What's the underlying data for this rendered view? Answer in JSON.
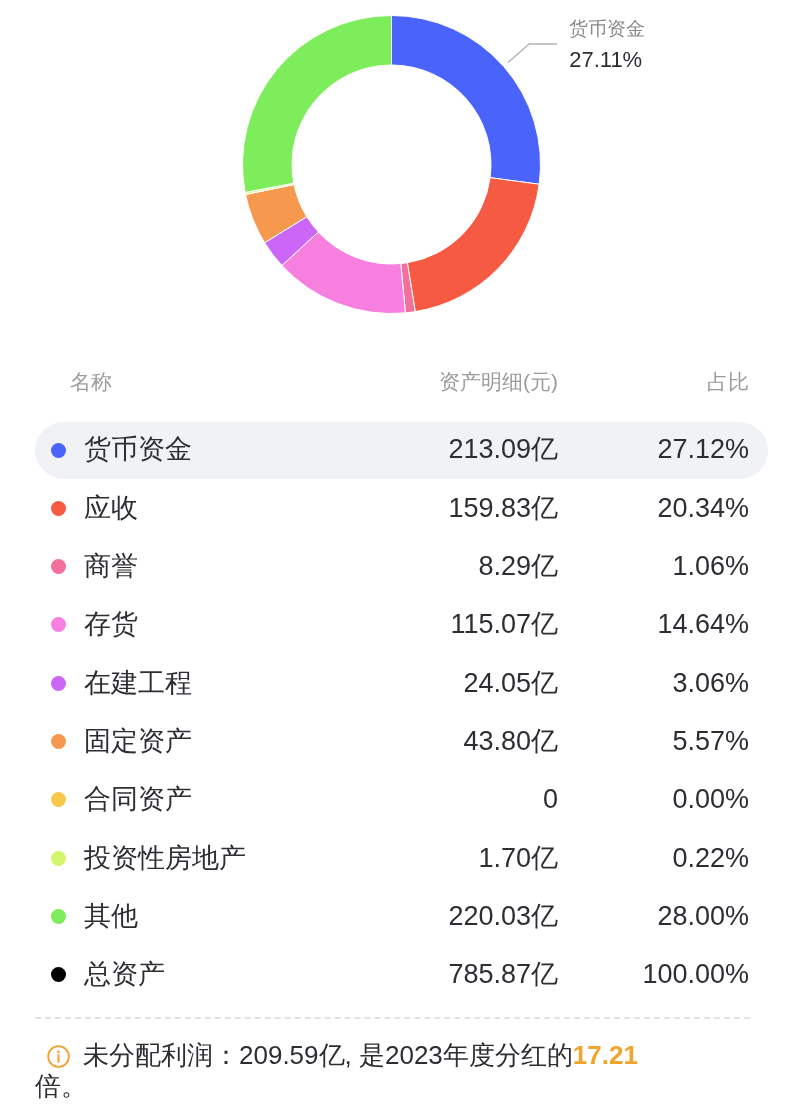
{
  "chart_data": {
    "type": "donut",
    "categories": [
      "货币资金",
      "应收",
      "商誉",
      "存货",
      "在建工程",
      "固定资产",
      "合同资产",
      "投资性房地产",
      "其他"
    ],
    "values": [
      213.09,
      159.83,
      8.29,
      115.07,
      24.05,
      43.8,
      0,
      1.7,
      220.03
    ],
    "value_labels": [
      "213.09亿",
      "159.83亿",
      "8.29亿",
      "115.07亿",
      "24.05亿",
      "43.80亿",
      "0",
      "1.70亿",
      "220.03亿"
    ],
    "colors": [
      "#4a64fb",
      "#f75a43",
      "#f46f9b",
      "#f77fdf",
      "#cc66f7",
      "#f6994f",
      "#f6c94d",
      "#d3f56c",
      "#7eed5c"
    ],
    "legend": "bottom",
    "legend_title": "名称",
    "annotations": [
      {
        "text": "27.11%",
        "x": "货币资金"
      },
      "资产明细(元)",
      "占比",
      {
        "text": "27.12%",
        "x": "货币资金"
      },
      {
        "text": "20.34%",
        "x": "应收"
      },
      {
        "text": "1.06%",
        "x": "商誉"
      },
      {
        "text": "14.64%",
        "x": "存货"
      },
      {
        "text": "3.06%",
        "x": "在建工程"
      },
      {
        "text": "5.57%",
        "x": "固定资产"
      },
      {
        "text": "0.00%",
        "x": "合同资产"
      },
      {
        "text": "0.22%",
        "x": "投资性房地产"
      },
      {
        "text": "28.00%",
        "x": "其他"
      },
      "总资产",
      "785.87亿",
      "100.00%",
      "未分配利润：209.59亿, 是2023年度分红的",
      "17.21",
      "倍。"
    ]
  }
}
